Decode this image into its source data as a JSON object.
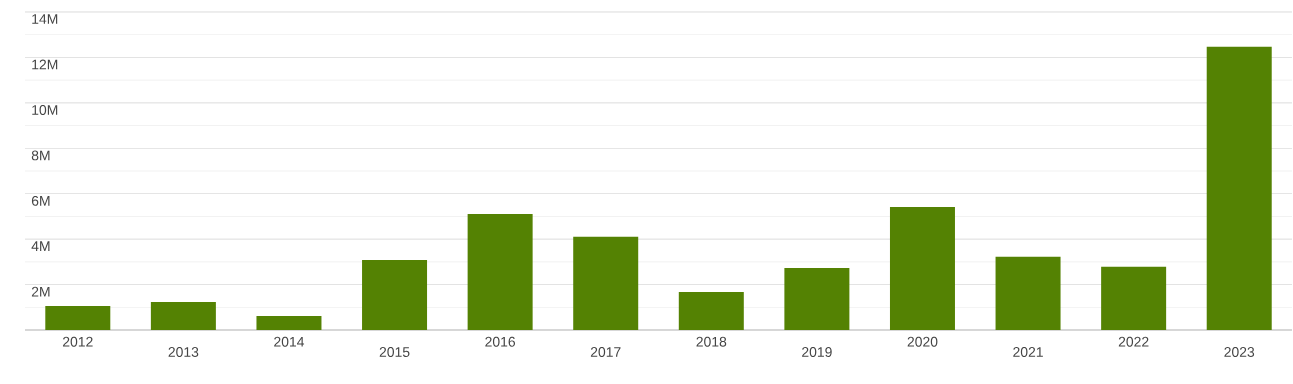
{
  "chart_data": {
    "type": "bar",
    "categories": [
      "2012",
      "2013",
      "2014",
      "2015",
      "2016",
      "2017",
      "2018",
      "2019",
      "2020",
      "2021",
      "2022",
      "2023"
    ],
    "values": [
      1060000,
      1230000,
      620000,
      3080000,
      5110000,
      4100000,
      1670000,
      2730000,
      5420000,
      3220000,
      2780000,
      12470000
    ],
    "color": "#548203",
    "ylim": [
      0,
      14000000
    ],
    "yticks": [
      {
        "value": 1000000,
        "label": null
      },
      {
        "value": 2000000,
        "label": "2M"
      },
      {
        "value": 3000000,
        "label": null
      },
      {
        "value": 4000000,
        "label": "4M"
      },
      {
        "value": 5000000,
        "label": null
      },
      {
        "value": 6000000,
        "label": "6M"
      },
      {
        "value": 7000000,
        "label": null
      },
      {
        "value": 8000000,
        "label": "8M"
      },
      {
        "value": 9000000,
        "label": null
      },
      {
        "value": 10000000,
        "label": "10M"
      },
      {
        "value": 11000000,
        "label": null
      },
      {
        "value": 12000000,
        "label": "12M"
      },
      {
        "value": 13000000,
        "label": null
      },
      {
        "value": 14000000,
        "label": "14M"
      }
    ],
    "grid": true
  }
}
